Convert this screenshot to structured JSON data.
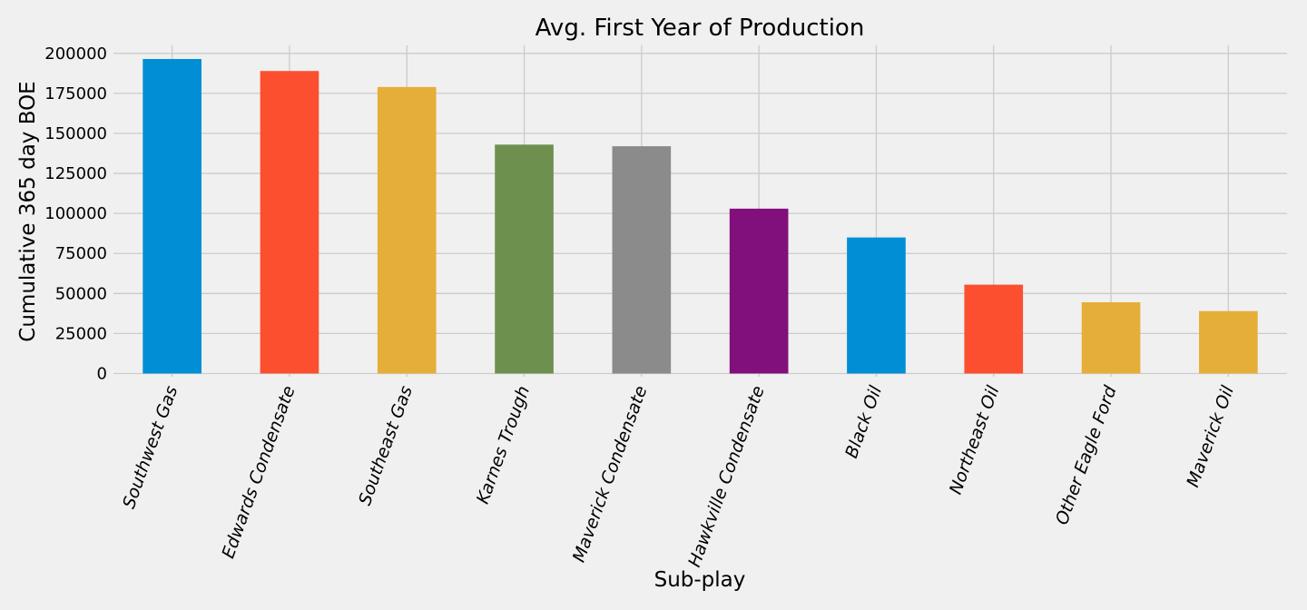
{
  "chart_data": {
    "type": "bar",
    "title": "Avg. First Year of Production",
    "xlabel": "Sub-play",
    "ylabel": "Cumulative 365 day BOE",
    "categories": [
      "Southwest Gas",
      "Edwards Condensate",
      "Southeast Gas",
      "Karnes Trough",
      "Maverick Condensate",
      "Hawkville Condensate",
      "Black Oil",
      "Northeast Oil",
      "Other Eagle Ford",
      "Maverick Oil"
    ],
    "values": [
      196500,
      189000,
      179000,
      143000,
      142000,
      103000,
      85000,
      55500,
      44500,
      39000
    ],
    "colors": [
      "#008fd5",
      "#fc4f30",
      "#e5ae38",
      "#6d904f",
      "#8b8b8b",
      "#810f7c",
      "#008fd5",
      "#fc4f30",
      "#e5ae38",
      "#e5ae38"
    ],
    "yticks": [
      0,
      25000,
      50000,
      75000,
      100000,
      125000,
      150000,
      175000,
      200000
    ],
    "ylim": [
      -2000,
      205000
    ],
    "grid": true,
    "style": "fivethirtyeight"
  }
}
